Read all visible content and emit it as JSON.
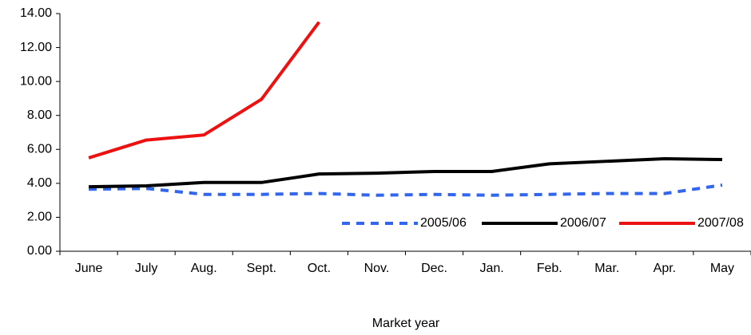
{
  "chart_data": {
    "type": "line",
    "x_label": "Market year",
    "categories": [
      "June",
      "July",
      "Aug.",
      "Sept.",
      "Oct.",
      "Nov.",
      "Dec.",
      "Jan.",
      "Feb.",
      "Mar.",
      "Apr.",
      "May"
    ],
    "series": [
      {
        "name": "2005/06",
        "color": "#3366ee",
        "dashed": true,
        "values": [
          3.65,
          3.7,
          3.35,
          3.35,
          3.4,
          3.3,
          3.35,
          3.3,
          3.35,
          3.4,
          3.4,
          3.9
        ]
      },
      {
        "name": "2006/07",
        "color": "#000000",
        "dashed": false,
        "values": [
          3.8,
          3.85,
          4.05,
          4.05,
          4.55,
          4.6,
          4.7,
          4.7,
          5.15,
          5.3,
          5.45,
          5.4
        ]
      },
      {
        "name": "2007/08",
        "color": "#ee1111",
        "dashed": false,
        "values": [
          5.5,
          6.55,
          6.85,
          8.95,
          13.5,
          null,
          null,
          null,
          null,
          null,
          null,
          null
        ]
      }
    ],
    "ylim": [
      0,
      14
    ],
    "yticks": [
      {
        "value": 0,
        "label": "0.00"
      },
      {
        "value": 2,
        "label": "2.00"
      },
      {
        "value": 4,
        "label": "4.00"
      },
      {
        "value": 6,
        "label": "6.00"
      },
      {
        "value": 8,
        "label": "8.00"
      },
      {
        "value": 10,
        "label": "10.00"
      },
      {
        "value": 12,
        "label": "12.00"
      },
      {
        "value": 14,
        "label": "14.00"
      }
    ],
    "grid": false,
    "legend": "lower-right"
  }
}
